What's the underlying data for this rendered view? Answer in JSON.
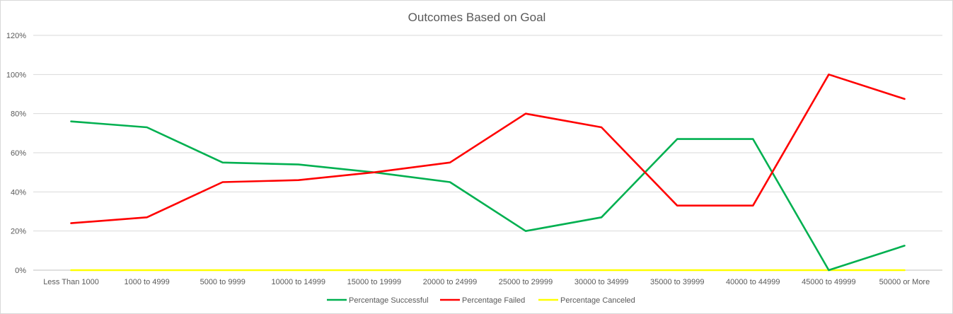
{
  "chart_data": {
    "type": "line",
    "title": "Outcomes Based on Goal",
    "xlabel": "",
    "ylabel": "",
    "categories": [
      "Less Than 1000",
      "1000 to 4999",
      "5000 to 9999",
      "10000 to 14999",
      "15000 to 19999",
      "20000 to 24999",
      "25000 to 29999",
      "30000 to 34999",
      "35000 to 39999",
      "40000 to 44999",
      "45000 to 49999",
      "50000 or More"
    ],
    "ylim": [
      0,
      120
    ],
    "yticks": [
      "0%",
      "20%",
      "40%",
      "60%",
      "80%",
      "100%",
      "120%"
    ],
    "grid": true,
    "legend_position": "bottom",
    "series": [
      {
        "name": "Percentage Successful",
        "color": "#00b050",
        "values": [
          76,
          73,
          55,
          54,
          50,
          45,
          20,
          27,
          67,
          67,
          0,
          12.5
        ]
      },
      {
        "name": "Percentage Failed",
        "color": "#ff0000",
        "values": [
          24,
          27,
          45,
          46,
          50,
          55,
          80,
          73,
          33,
          33,
          100,
          87.5
        ]
      },
      {
        "name": "Percentage Canceled",
        "color": "#ffff00",
        "values": [
          0,
          0,
          0,
          0,
          0,
          0,
          0,
          0,
          0,
          0,
          0,
          0
        ]
      }
    ]
  }
}
